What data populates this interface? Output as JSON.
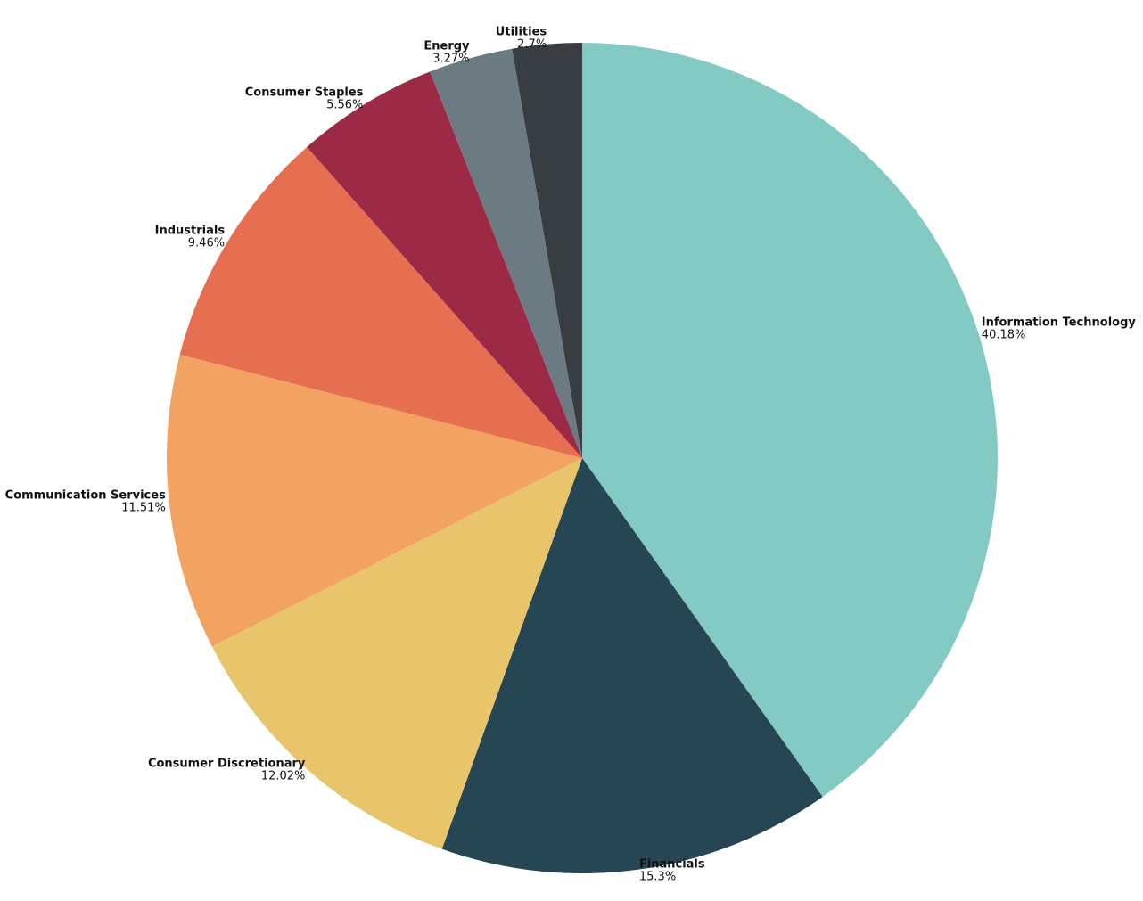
{
  "chart_data": {
    "type": "pie",
    "categories": [
      "Information Technology",
      "Financials",
      "Consumer Discretionary",
      "Communication Services",
      "Industrials",
      "Consumer Staples",
      "Energy",
      "Utilities"
    ],
    "values": [
      40.18,
      15.3,
      12.02,
      11.51,
      9.46,
      5.56,
      3.27,
      2.7
    ],
    "value_labels": [
      "40.18%",
      "15.3%",
      "12.02%",
      "11.51%",
      "9.46%",
      "5.56%",
      "3.27%",
      "2.7%"
    ],
    "colors": [
      "#82cac3",
      "#274654",
      "#e8c56b",
      "#f2a261",
      "#e76f51",
      "#9c2a47",
      "#6c7b81",
      "#373d41"
    ]
  }
}
